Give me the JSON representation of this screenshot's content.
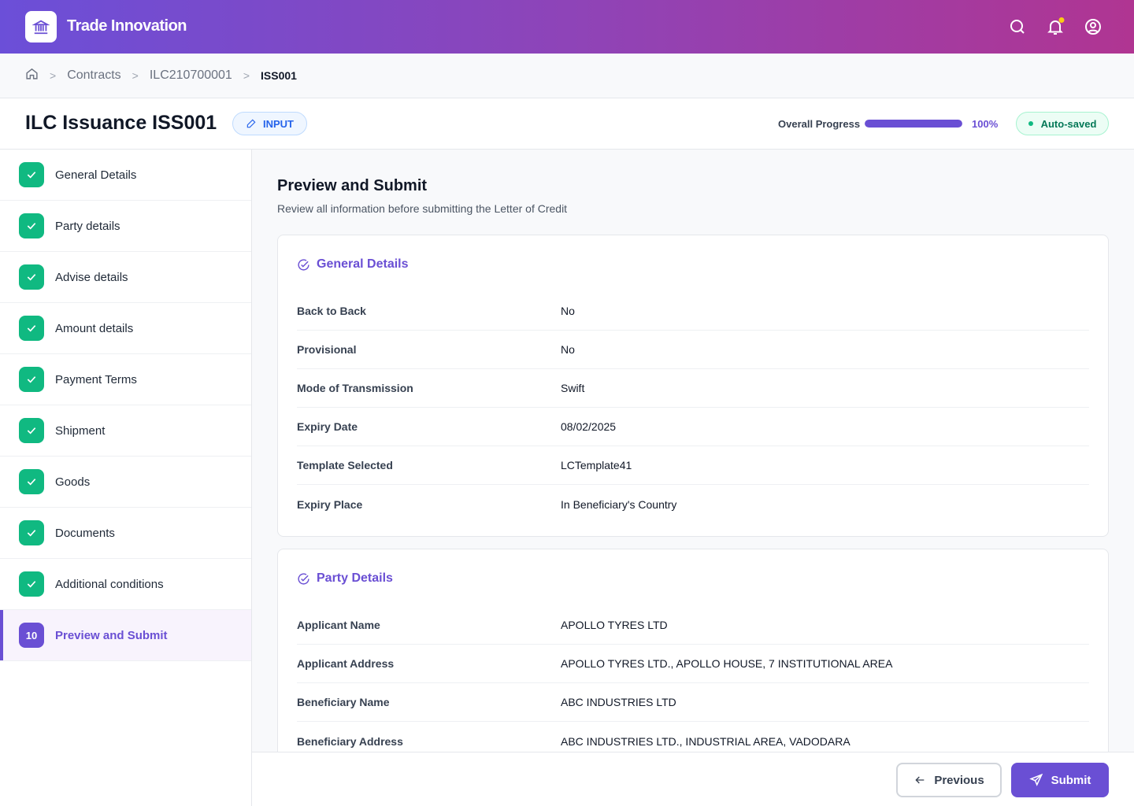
{
  "app": {
    "brand": "Trade Innovation",
    "colors": {
      "accent": "#6a4fd4",
      "success": "#10b981",
      "notification_dot": "#facc15"
    }
  },
  "breadcrumb": {
    "items": [
      "Contracts",
      "ILC210700001"
    ],
    "current": "ISS001"
  },
  "header": {
    "title": "ILC Issuance ISS001",
    "mode_badge": "INPUT",
    "progress_label": "Overall Progress",
    "progress_percent": 100,
    "progress_text": "100%",
    "save_status": "Auto-saved"
  },
  "steps": [
    {
      "label": "General Details",
      "done": true
    },
    {
      "label": "Party details",
      "done": true
    },
    {
      "label": "Advise details",
      "done": true
    },
    {
      "label": "Amount details",
      "done": true
    },
    {
      "label": "Payment Terms",
      "done": true
    },
    {
      "label": "Shipment",
      "done": true
    },
    {
      "label": "Goods",
      "done": true
    },
    {
      "label": "Documents",
      "done": true
    },
    {
      "label": "Additional conditions",
      "done": true
    },
    {
      "label": "Preview and Submit",
      "number": "10",
      "active": true
    }
  ],
  "main": {
    "title": "Preview and Submit",
    "subtitle": "Review all information before submitting the Letter of Credit",
    "sections": [
      {
        "title": "General Details",
        "rows": [
          {
            "label": "Back to Back",
            "value": "No"
          },
          {
            "label": "Provisional",
            "value": "No"
          },
          {
            "label": "Mode of Transmission",
            "value": "Swift"
          },
          {
            "label": "Expiry Date",
            "value": "08/02/2025"
          },
          {
            "label": "Template Selected",
            "value": "LCTemplate41"
          },
          {
            "label": "Expiry Place",
            "value": "In Beneficiary's Country"
          }
        ]
      },
      {
        "title": "Party Details",
        "rows": [
          {
            "label": "Applicant Name",
            "value": "APOLLO TYRES LTD"
          },
          {
            "label": "Applicant Address",
            "value": "APOLLO TYRES LTD., APOLLO HOUSE, 7 INSTITUTIONAL AREA"
          },
          {
            "label": "Beneficiary Name",
            "value": "ABC INDUSTRIES LTD"
          },
          {
            "label": "Beneficiary Address",
            "value": "ABC INDUSTRIES LTD., INDUSTRIAL AREA, VADODARA"
          }
        ]
      }
    ]
  },
  "footer": {
    "previous": "Previous",
    "submit": "Submit"
  }
}
